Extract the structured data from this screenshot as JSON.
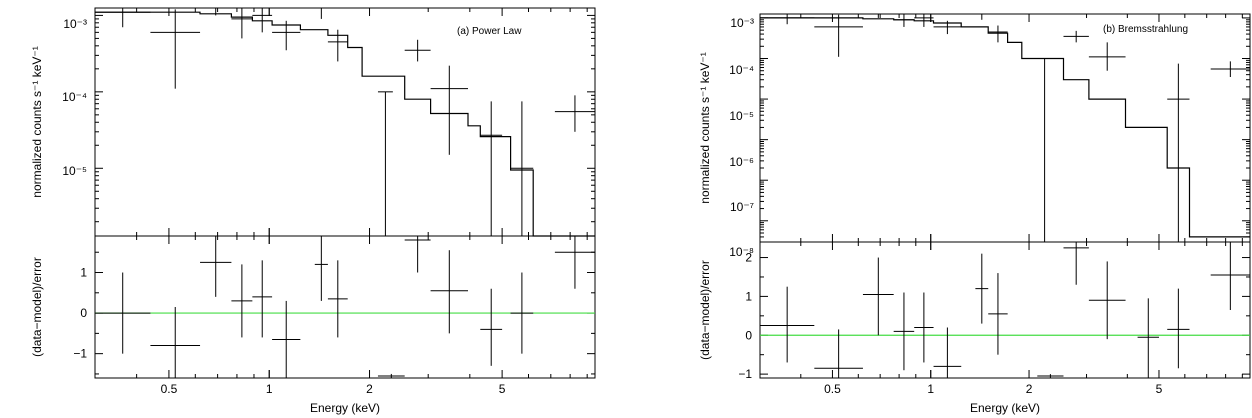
{
  "chart_data": [
    {
      "type": "scatter",
      "annotation": "(a) Power Law",
      "xlabel": "Energy (keV)",
      "xscale": "log",
      "xlim": [
        0.3,
        9.5
      ],
      "xticks": [
        "0.5",
        "1",
        "2",
        "5"
      ],
      "top": {
        "ylabel": "normalized counts s⁻¹ keV⁻¹",
        "yscale": "log",
        "ylim": [
          1.3e-06,
          0.00125
        ],
        "ytick_labels": [
          "10⁻³",
          "10⁻⁴",
          "10⁻⁵"
        ],
        "data": [
          {
            "xlo": 0.3,
            "xhi": 0.44,
            "y": 0.0011,
            "ylo": 0.0007,
            "yhi": 0.0016
          },
          {
            "xlo": 0.44,
            "xhi": 0.62,
            "y": 0.0006,
            "ylo": 0.00011,
            "yhi": 0.0012
          },
          {
            "xlo": 0.62,
            "xhi": 0.77,
            "y": 0.0015,
            "ylo": 0.001,
            "yhi": 0.002
          },
          {
            "xlo": 0.77,
            "xhi": 0.89,
            "y": 0.0009,
            "ylo": 0.0005,
            "yhi": 0.0014
          },
          {
            "xlo": 0.89,
            "xhi": 1.02,
            "y": 0.001,
            "ylo": 0.0006,
            "yhi": 0.0015
          },
          {
            "xlo": 1.02,
            "xhi": 1.24,
            "y": 0.0006,
            "ylo": 0.00035,
            "yhi": 0.00085
          },
          {
            "xlo": 1.37,
            "xhi": 1.5,
            "y": 0.0013,
            "ylo": 0.0009,
            "yhi": 0.0018
          },
          {
            "xlo": 1.5,
            "xhi": 1.72,
            "y": 0.00045,
            "ylo": 0.00025,
            "yhi": 0.00065
          },
          {
            "xlo": 2.12,
            "xhi": 2.35,
            "y": 0.0001,
            "ylo": 1e-06,
            "yhi": 0.0001
          },
          {
            "xlo": 2.55,
            "xhi": 3.05,
            "y": 0.00035,
            "ylo": 0.00025,
            "yhi": 0.00048
          },
          {
            "xlo": 3.05,
            "xhi": 3.95,
            "y": 0.00011,
            "ylo": 1.5e-05,
            "yhi": 0.00022
          },
          {
            "xlo": 4.3,
            "xhi": 5.0,
            "y": 2.7e-05,
            "ylo": 1e-06,
            "yhi": 7.5e-05
          },
          {
            "xlo": 5.3,
            "xhi": 6.2,
            "y": 1e-05,
            "ylo": 1e-06,
            "yhi": 7.5e-05
          },
          {
            "xlo": 7.2,
            "xhi": 9.5,
            "y": 5.5e-05,
            "ylo": 3e-05,
            "yhi": 9e-05
          }
        ],
        "model": [
          {
            "x": 0.3,
            "y": 0.0011
          },
          {
            "x": 0.62,
            "y": 0.00105
          },
          {
            "x": 0.77,
            "y": 0.00095
          },
          {
            "x": 0.89,
            "y": 0.00085
          },
          {
            "x": 1.02,
            "y": 0.00075
          },
          {
            "x": 1.24,
            "y": 0.00065
          },
          {
            "x": 1.5,
            "y": 0.00055
          },
          {
            "x": 1.72,
            "y": 0.00038
          },
          {
            "x": 1.9,
            "y": 0.00016
          },
          {
            "x": 2.55,
            "y": 8e-05
          },
          {
            "x": 3.05,
            "y": 5.2e-05
          },
          {
            "x": 3.95,
            "y": 3.6e-05
          },
          {
            "x": 4.3,
            "y": 2.6e-05
          },
          {
            "x": 5.3,
            "y": 9.5e-06
          },
          {
            "x": 6.2,
            "y": 1.3e-06
          },
          {
            "x": 9.5,
            "y": 1.3e-06
          }
        ]
      },
      "bottom": {
        "ylabel": "(data−model)/error",
        "ylim": [
          -1.6,
          1.9
        ],
        "yticks": [
          -1,
          0,
          1
        ],
        "data": [
          {
            "xlo": 0.3,
            "xhi": 0.44,
            "y": 0.0,
            "ylo": -1.0,
            "yhi": 1.0
          },
          {
            "xlo": 0.44,
            "xhi": 0.62,
            "y": -0.8,
            "ylo": -1.6,
            "yhi": 0.15
          },
          {
            "xlo": 0.62,
            "xhi": 0.77,
            "y": 1.25,
            "ylo": 0.4,
            "yhi": 1.9
          },
          {
            "xlo": 0.77,
            "xhi": 0.89,
            "y": 0.3,
            "ylo": -0.6,
            "yhi": 1.2
          },
          {
            "xlo": 0.89,
            "xhi": 1.02,
            "y": 0.4,
            "ylo": -0.6,
            "yhi": 1.3
          },
          {
            "xlo": 1.02,
            "xhi": 1.24,
            "y": -0.65,
            "ylo": -1.6,
            "yhi": 0.3
          },
          {
            "xlo": 1.37,
            "xhi": 1.5,
            "y": 1.2,
            "ylo": 0.3,
            "yhi": 1.9
          },
          {
            "xlo": 1.5,
            "xhi": 1.72,
            "y": 0.35,
            "ylo": -0.6,
            "yhi": 1.3
          },
          {
            "xlo": 2.12,
            "xhi": 2.55,
            "y": -1.55,
            "ylo": -1.6,
            "yhi": -1.5
          },
          {
            "xlo": 2.55,
            "xhi": 3.05,
            "y": 1.8,
            "ylo": 1.0,
            "yhi": 1.9
          },
          {
            "xlo": 3.05,
            "xhi": 3.95,
            "y": 0.55,
            "ylo": -0.5,
            "yhi": 1.55
          },
          {
            "xlo": 4.3,
            "xhi": 5.0,
            "y": -0.4,
            "ylo": -1.3,
            "yhi": 0.6
          },
          {
            "xlo": 5.3,
            "xhi": 6.2,
            "y": 0.0,
            "ylo": -1.0,
            "yhi": 1.0
          },
          {
            "xlo": 7.2,
            "xhi": 9.5,
            "y": 1.5,
            "ylo": 0.6,
            "yhi": 1.9
          }
        ]
      }
    },
    {
      "type": "scatter",
      "annotation": "(b) Bremsstrahlung",
      "xlabel": "Energy (keV)",
      "xscale": "log",
      "xlim": [
        0.3,
        9.5
      ],
      "xticks": [
        "0.5",
        "1",
        "2",
        "5"
      ],
      "top": {
        "ylabel": "normalized counts s⁻¹ keV⁻¹",
        "yscale": "log",
        "ylim": [
          3e-09,
          0.00125
        ],
        "ytick_labels": [
          "10⁻³",
          "10⁻⁴",
          "10⁻⁵",
          "10⁻⁶",
          "10⁻⁷",
          "10⁻⁸"
        ],
        "data": [
          {
            "xlo": 0.3,
            "xhi": 0.44,
            "y": 0.001,
            "ylo": 0.0007,
            "yhi": 0.0013
          },
          {
            "xlo": 0.44,
            "xhi": 0.62,
            "y": 0.0006,
            "ylo": 0.00011,
            "yhi": 0.0012
          },
          {
            "xlo": 0.62,
            "xhi": 0.77,
            "y": 0.0015,
            "ylo": 0.001,
            "yhi": 0.002
          },
          {
            "xlo": 0.77,
            "xhi": 0.89,
            "y": 0.0009,
            "ylo": 0.0006,
            "yhi": 0.0013
          },
          {
            "xlo": 0.89,
            "xhi": 1.02,
            "y": 0.001,
            "ylo": 0.0006,
            "yhi": 0.0014
          },
          {
            "xlo": 1.02,
            "xhi": 1.24,
            "y": 0.0006,
            "ylo": 0.0004,
            "yhi": 0.00085
          },
          {
            "xlo": 1.37,
            "xhi": 1.5,
            "y": 0.0013,
            "ylo": 0.0009,
            "yhi": 0.0018
          },
          {
            "xlo": 1.5,
            "xhi": 1.72,
            "y": 0.00045,
            "ylo": 0.00025,
            "yhi": 0.00065
          },
          {
            "xlo": 2.12,
            "xhi": 2.35,
            "y": 0.0001,
            "ylo": 3e-09,
            "yhi": 0.0001
          },
          {
            "xlo": 2.55,
            "xhi": 3.05,
            "y": 0.00035,
            "ylo": 0.00025,
            "yhi": 0.00048
          },
          {
            "xlo": 3.05,
            "xhi": 3.95,
            "y": 0.00011,
            "ylo": 5e-05,
            "yhi": 0.00025
          },
          {
            "xlo": 5.3,
            "xhi": 6.2,
            "y": 1e-05,
            "ylo": 3e-09,
            "yhi": 7.5e-05
          },
          {
            "xlo": 7.2,
            "xhi": 9.5,
            "y": 5.5e-05,
            "ylo": 3.5e-05,
            "yhi": 8.5e-05
          }
        ],
        "model": [
          {
            "x": 0.3,
            "y": 0.001
          },
          {
            "x": 0.62,
            "y": 0.00095
          },
          {
            "x": 0.77,
            "y": 0.0009
          },
          {
            "x": 0.89,
            "y": 0.00085
          },
          {
            "x": 1.02,
            "y": 0.00075
          },
          {
            "x": 1.24,
            "y": 0.0006
          },
          {
            "x": 1.5,
            "y": 0.00042
          },
          {
            "x": 1.72,
            "y": 0.00025
          },
          {
            "x": 1.9,
            "y": 0.0001
          },
          {
            "x": 2.55,
            "y": 3e-05
          },
          {
            "x": 3.05,
            "y": 1e-05
          },
          {
            "x": 3.95,
            "y": 2e-06
          },
          {
            "x": 5.3,
            "y": 2e-07
          },
          {
            "x": 6.2,
            "y": 4e-09
          },
          {
            "x": 9.5,
            "y": 4e-09
          }
        ]
      },
      "bottom": {
        "ylabel": "(data−model)/error",
        "ylim": [
          -1.1,
          2.4
        ],
        "yticks": [
          -1,
          0,
          1,
          2
        ],
        "data": [
          {
            "xlo": 0.3,
            "xhi": 0.44,
            "y": 0.25,
            "ylo": -0.7,
            "yhi": 1.25
          },
          {
            "xlo": 0.44,
            "xhi": 0.62,
            "y": -0.85,
            "ylo": -1.1,
            "yhi": 0.15
          },
          {
            "xlo": 0.62,
            "xhi": 0.77,
            "y": 1.05,
            "ylo": 0.0,
            "yhi": 2.0
          },
          {
            "xlo": 0.77,
            "xhi": 0.89,
            "y": 0.1,
            "ylo": -0.9,
            "yhi": 1.1
          },
          {
            "xlo": 0.89,
            "xhi": 1.02,
            "y": 0.2,
            "ylo": -0.7,
            "yhi": 1.1
          },
          {
            "xlo": 1.02,
            "xhi": 1.24,
            "y": -0.8,
            "ylo": -1.1,
            "yhi": 0.2
          },
          {
            "xlo": 1.37,
            "xhi": 1.5,
            "y": 1.2,
            "ylo": 0.3,
            "yhi": 2.1
          },
          {
            "xlo": 1.5,
            "xhi": 1.72,
            "y": 0.55,
            "ylo": -0.5,
            "yhi": 1.6
          },
          {
            "xlo": 2.12,
            "xhi": 2.55,
            "y": -1.05,
            "ylo": -1.1,
            "yhi": -1.0
          },
          {
            "xlo": 2.55,
            "xhi": 3.05,
            "y": 2.25,
            "ylo": 1.3,
            "yhi": 2.4
          },
          {
            "xlo": 3.05,
            "xhi": 3.95,
            "y": 0.9,
            "ylo": -0.1,
            "yhi": 1.9
          },
          {
            "xlo": 4.3,
            "xhi": 5.0,
            "y": -0.05,
            "ylo": -1.1,
            "yhi": 0.95
          },
          {
            "xlo": 5.3,
            "xhi": 6.2,
            "y": 0.15,
            "ylo": -0.85,
            "yhi": 1.2
          },
          {
            "xlo": 7.2,
            "xhi": 9.5,
            "y": 1.55,
            "ylo": 0.65,
            "yhi": 2.4
          }
        ]
      }
    }
  ],
  "colors": {
    "zero_line": "#44dd44",
    "data": "#000000",
    "model": "#000000"
  }
}
